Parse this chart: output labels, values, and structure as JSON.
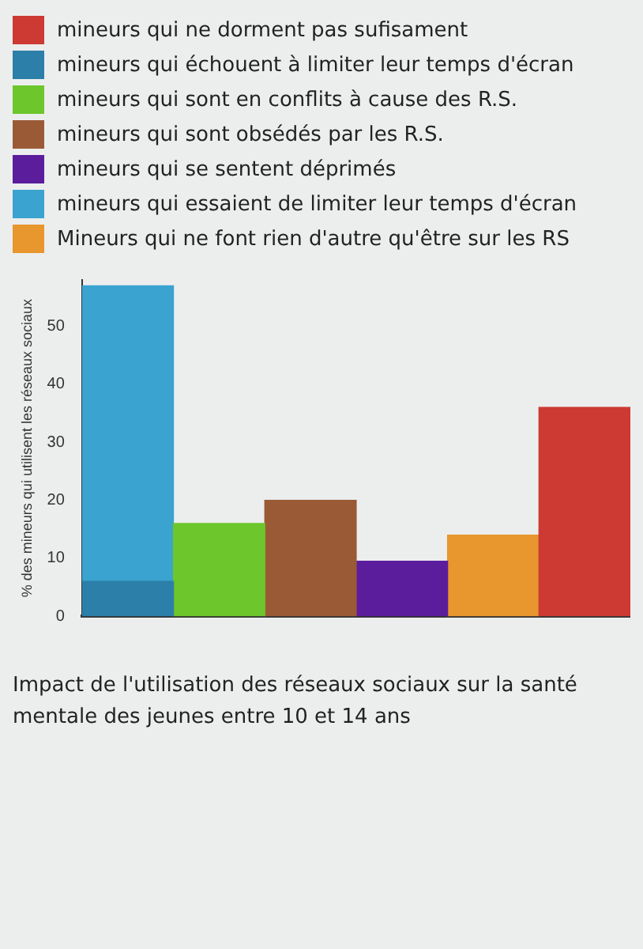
{
  "chart_data": {
    "type": "bar",
    "title": "Impact de l'utilisation des réseaux sociaux sur la santé mentale des jeunes entre 10 et 14 ans",
    "ylabel": "% des mineurs qui utilisent les réseaux sociaux",
    "categories": [
      null,
      null,
      null,
      null,
      null,
      null
    ],
    "stacked": true,
    "legend": "top",
    "grid": false,
    "ylim": [
      0,
      58
    ],
    "yticks": [
      0,
      10,
      20,
      30,
      40,
      50
    ],
    "series": [
      {
        "name": "mineurs qui ne dorment pas sufisament",
        "color": "#cc3a33",
        "values": [
          null,
          null,
          null,
          null,
          null,
          36
        ]
      },
      {
        "name": "mineurs qui échouent à limiter leur temps d'écran",
        "color": "#2c7fa8",
        "values": [
          6,
          null,
          null,
          null,
          null,
          null
        ]
      },
      {
        "name": "mineurs qui sont en conflits à cause des R.S.",
        "color": "#6cc62c",
        "values": [
          null,
          16,
          null,
          null,
          null,
          null
        ]
      },
      {
        "name": "mineurs qui sont obsédés par les R.S.",
        "color": "#9a5a36",
        "values": [
          null,
          null,
          20,
          null,
          null,
          null
        ]
      },
      {
        "name": "mineurs qui se sentent déprimés",
        "color": "#5b1d9c",
        "values": [
          null,
          null,
          null,
          9.5,
          null,
          null
        ]
      },
      {
        "name": "mineurs qui essaient de limiter leur temps d'écran",
        "color": "#3aa3cf",
        "values": [
          51,
          null,
          null,
          null,
          null,
          null
        ]
      },
      {
        "name": "Mineurs qui ne font rien d'autre qu'être sur les RS",
        "color": "#e8962e",
        "values": [
          null,
          null,
          null,
          null,
          14,
          null
        ]
      }
    ]
  }
}
